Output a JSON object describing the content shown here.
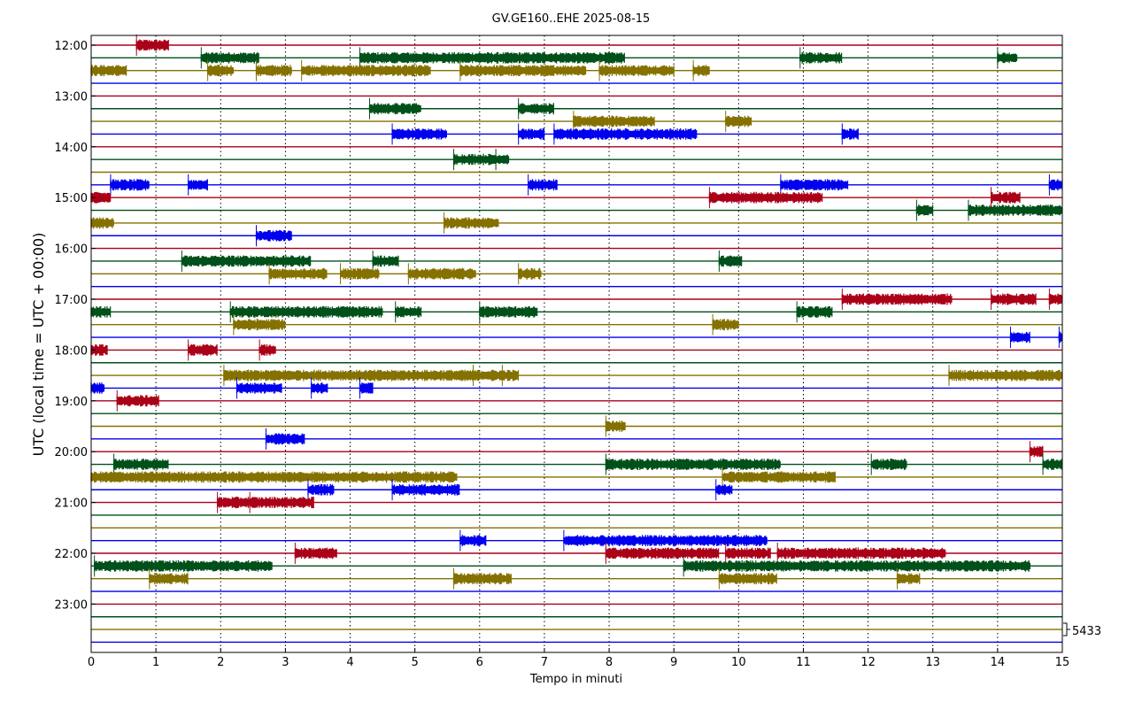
{
  "chart_data": {
    "type": "line",
    "title": "GV.GE160..EHE 2025-08-15",
    "xlabel": "Tempo in minuti",
    "ylabel": "UTC (local time = UTC + 00:00)",
    "xlim": [
      0,
      15
    ],
    "x_ticks": [
      "0",
      "1",
      "2",
      "3",
      "4",
      "5",
      "6",
      "7",
      "8",
      "9",
      "10",
      "11",
      "12",
      "13",
      "14",
      "15"
    ],
    "grid": "vertical dotted at each minute",
    "scale_label": "5433",
    "colors": [
      "#aa0018",
      "#00501a",
      "#857100",
      "#0000ee"
    ],
    "row_minutes": 15,
    "rows": [
      {
        "time": "12:00",
        "bursts": [
          [
            0.7,
            1.2
          ]
        ]
      },
      {
        "time": "",
        "bursts": [
          [
            1.7,
            2.6
          ],
          [
            4.15,
            8.25
          ],
          [
            10.95,
            11.6
          ],
          [
            14.0,
            14.3
          ]
        ]
      },
      {
        "time": "",
        "bursts": [
          [
            0,
            0.55
          ],
          [
            1.8,
            2.2
          ],
          [
            2.55,
            3.1
          ],
          [
            3.25,
            5.25
          ],
          [
            5.7,
            7.65
          ],
          [
            7.85,
            9.0
          ],
          [
            9.3,
            9.55
          ]
        ]
      },
      {
        "time": "",
        "bursts": []
      },
      {
        "time": "13:00",
        "bursts": []
      },
      {
        "time": "",
        "bursts": [
          [
            4.3,
            5.1
          ],
          [
            6.6,
            7.15
          ]
        ]
      },
      {
        "time": "",
        "bursts": [
          [
            7.45,
            8.7
          ],
          [
            9.8,
            10.2
          ]
        ]
      },
      {
        "time": "",
        "bursts": [
          [
            4.65,
            5.5
          ],
          [
            6.6,
            7.0
          ],
          [
            7.15,
            9.35
          ],
          [
            11.6,
            11.85
          ]
        ]
      },
      {
        "time": "14:00",
        "bursts": []
      },
      {
        "time": "",
        "bursts": [
          [
            5.6,
            6.25
          ],
          [
            6.25,
            6.45
          ]
        ]
      },
      {
        "time": "",
        "bursts": []
      },
      {
        "time": "",
        "bursts": [
          [
            0.3,
            0.9
          ],
          [
            1.5,
            1.8
          ],
          [
            6.75,
            7.2
          ],
          [
            10.65,
            11.7
          ],
          [
            14.8,
            15.0
          ]
        ]
      },
      {
        "time": "15:00",
        "bursts": [
          [
            0,
            0.3
          ],
          [
            9.55,
            11.3
          ],
          [
            13.9,
            14.35
          ]
        ]
      },
      {
        "time": "",
        "bursts": [
          [
            12.75,
            13.0
          ],
          [
            13.55,
            15.0
          ]
        ]
      },
      {
        "time": "",
        "bursts": [
          [
            0,
            0.35
          ],
          [
            5.45,
            6.3
          ]
        ]
      },
      {
        "time": "",
        "bursts": [
          [
            2.55,
            3.1
          ]
        ]
      },
      {
        "time": "16:00",
        "bursts": []
      },
      {
        "time": "",
        "bursts": [
          [
            1.4,
            3.4
          ],
          [
            4.35,
            4.75
          ],
          [
            9.7,
            10.05
          ]
        ]
      },
      {
        "time": "",
        "bursts": [
          [
            2.75,
            3.65
          ],
          [
            3.85,
            4.45
          ],
          [
            4.9,
            5.95
          ],
          [
            6.6,
            6.95
          ]
        ]
      },
      {
        "time": "",
        "bursts": []
      },
      {
        "time": "17:00",
        "bursts": [
          [
            11.6,
            13.3
          ],
          [
            13.9,
            14.6
          ],
          [
            14.8,
            15.0
          ]
        ]
      },
      {
        "time": "",
        "bursts": [
          [
            0,
            0.3
          ],
          [
            2.15,
            4.5
          ],
          [
            4.7,
            5.1
          ],
          [
            6.0,
            6.9
          ],
          [
            10.9,
            11.45
          ]
        ]
      },
      {
        "time": "",
        "bursts": [
          [
            2.2,
            3.0
          ],
          [
            9.6,
            10.0
          ]
        ]
      },
      {
        "time": "",
        "bursts": [
          [
            14.2,
            14.5
          ],
          [
            14.95,
            15.0
          ]
        ]
      },
      {
        "time": "18:00",
        "bursts": [
          [
            0,
            0.25
          ],
          [
            1.5,
            1.95
          ],
          [
            2.6,
            2.85
          ]
        ]
      },
      {
        "time": "",
        "bursts": []
      },
      {
        "time": "",
        "bursts": [
          [
            2.05,
            5.9
          ],
          [
            5.9,
            6.35
          ],
          [
            6.35,
            6.6
          ],
          [
            13.25,
            15.0
          ]
        ]
      },
      {
        "time": "",
        "bursts": [
          [
            0,
            0.2
          ],
          [
            2.25,
            2.95
          ],
          [
            3.4,
            3.65
          ],
          [
            4.15,
            4.35
          ]
        ]
      },
      {
        "time": "19:00",
        "bursts": [
          [
            0.4,
            1.05
          ]
        ]
      },
      {
        "time": "",
        "bursts": []
      },
      {
        "time": "",
        "bursts": [
          [
            7.95,
            8.25
          ]
        ]
      },
      {
        "time": "",
        "bursts": [
          [
            2.7,
            3.3
          ]
        ]
      },
      {
        "time": "20:00",
        "bursts": [
          [
            14.5,
            14.7
          ]
        ]
      },
      {
        "time": "",
        "bursts": [
          [
            0.35,
            1.2
          ],
          [
            7.95,
            10.65
          ],
          [
            12.05,
            12.6
          ],
          [
            14.7,
            15.0
          ]
        ]
      },
      {
        "time": "",
        "bursts": [
          [
            0,
            5.65
          ],
          [
            9.75,
            11.5
          ]
        ]
      },
      {
        "time": "",
        "bursts": [
          [
            3.35,
            3.75
          ],
          [
            4.65,
            5.7
          ],
          [
            9.65,
            9.9
          ]
        ]
      },
      {
        "time": "21:00",
        "bursts": [
          [
            1.95,
            2.45
          ],
          [
            2.45,
            3.45
          ]
        ]
      },
      {
        "time": "",
        "bursts": []
      },
      {
        "time": "",
        "bursts": []
      },
      {
        "time": "",
        "bursts": [
          [
            5.7,
            6.1
          ],
          [
            7.3,
            10.45
          ]
        ]
      },
      {
        "time": "22:00",
        "bursts": [
          [
            3.15,
            3.8
          ],
          [
            7.95,
            9.7
          ],
          [
            9.8,
            10.5
          ],
          [
            10.6,
            13.2
          ]
        ]
      },
      {
        "time": "",
        "bursts": [
          [
            0.05,
            2.8
          ],
          [
            9.15,
            14.5
          ]
        ]
      },
      {
        "time": "",
        "bursts": [
          [
            0.9,
            1.5
          ],
          [
            5.6,
            6.5
          ],
          [
            9.7,
            10.6
          ],
          [
            12.45,
            12.8
          ]
        ]
      },
      {
        "time": "",
        "bursts": []
      },
      {
        "time": "23:00",
        "bursts": []
      },
      {
        "time": "",
        "bursts": []
      },
      {
        "time": "",
        "bursts": []
      },
      {
        "time": "",
        "bursts": []
      }
    ]
  }
}
